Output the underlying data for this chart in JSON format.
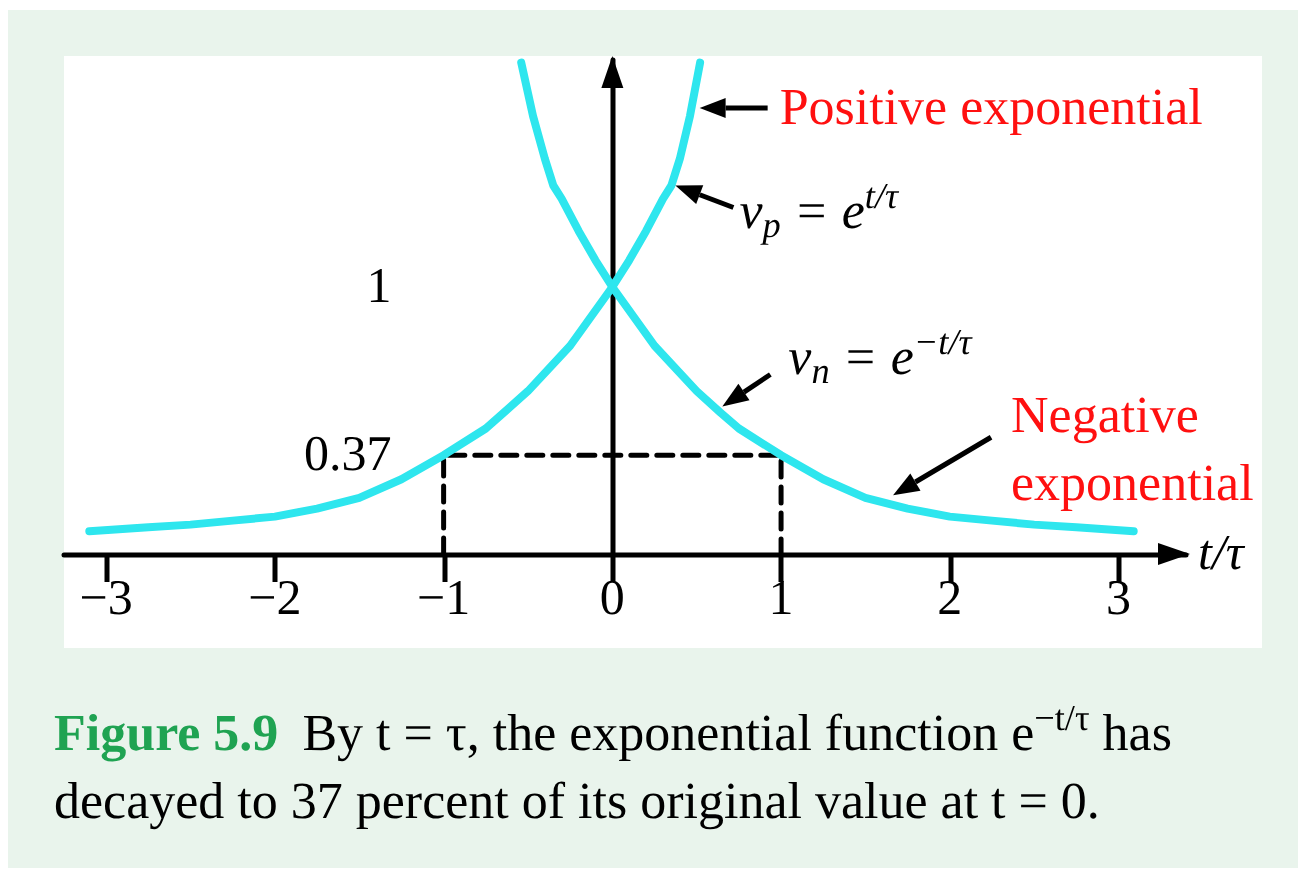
{
  "chart_data": {
    "type": "line",
    "title": "Figure 5.9",
    "subtitle": "By t = τ, the exponential function e$^{−t/τ}$ has decayed to 37 percent of its original value at t = 0.",
    "xlabel": "t/τ",
    "series": [
      {
        "color": "#2ee6ee",
        "x": [
          -3.1,
          -2.75,
          -2.5,
          -2.25,
          -2,
          -1.75,
          -1.5,
          -1.25,
          -1,
          -0.75,
          -0.5,
          -0.25,
          0,
          0.1,
          0.2,
          0.3,
          0.35,
          0.4,
          0.46,
          0.52
        ],
        "values": [
          0.085,
          0.1,
          0.11,
          0.125,
          0.14,
          0.17,
          0.21,
          0.28,
          0.37,
          0.47,
          0.61,
          0.78,
          1,
          1.1,
          1.21,
          1.33,
          1.38,
          1.48,
          1.64,
          1.84
        ]
      },
      {
        "color": "#2ee6ee",
        "x": [
          -0.54,
          -0.47,
          -0.4,
          -0.35,
          -0.3,
          -0.2,
          -0.1,
          0,
          0.25,
          0.5,
          0.64,
          0.75,
          1,
          1.25,
          1.5,
          1.75,
          2,
          2.25,
          2.5,
          2.75,
          3.09
        ],
        "values": [
          1.84,
          1.64,
          1.48,
          1.38,
          1.33,
          1.21,
          1.1,
          1,
          0.78,
          0.61,
          0.53,
          0.47,
          0.37,
          0.28,
          0.21,
          0.17,
          0.14,
          0.125,
          0.11,
          0.1,
          0.085
        ]
      },
      {
        "color": "#000000",
        "line_style": "dashed",
        "x": [
          -1,
          -1,
          1,
          1
        ],
        "values": [
          0,
          0.37,
          0.37,
          0
        ]
      }
    ],
    "xlim": [
      -3.25,
      3.4
    ],
    "xticks": [
      {
        "value": -3,
        "label": "−3"
      },
      {
        "value": -2,
        "label": "−2"
      },
      {
        "value": -1,
        "label": "−1"
      },
      0,
      1,
      2,
      3
    ],
    "ylim": [
      0,
      1.85
    ],
    "yticks": [
      0.37,
      1
    ],
    "marker": "none",
    "line_style": "solid",
    "annotations": [
      {
        "text": "Positive exponential",
        "x": 0.47,
        "y": 1.67
      },
      {
        "text": "v$_{p}$ = e$^{t/τ}$",
        "x": 0.35,
        "y": 1.38
      },
      {
        "text": "v$_{n}$ = e$^{−t/τ}$",
        "x": 0.64,
        "y": 0.53
      },
      {
        "text": "Negative exponential",
        "x": 1.64,
        "y": 0.19
      }
    ]
  }
}
